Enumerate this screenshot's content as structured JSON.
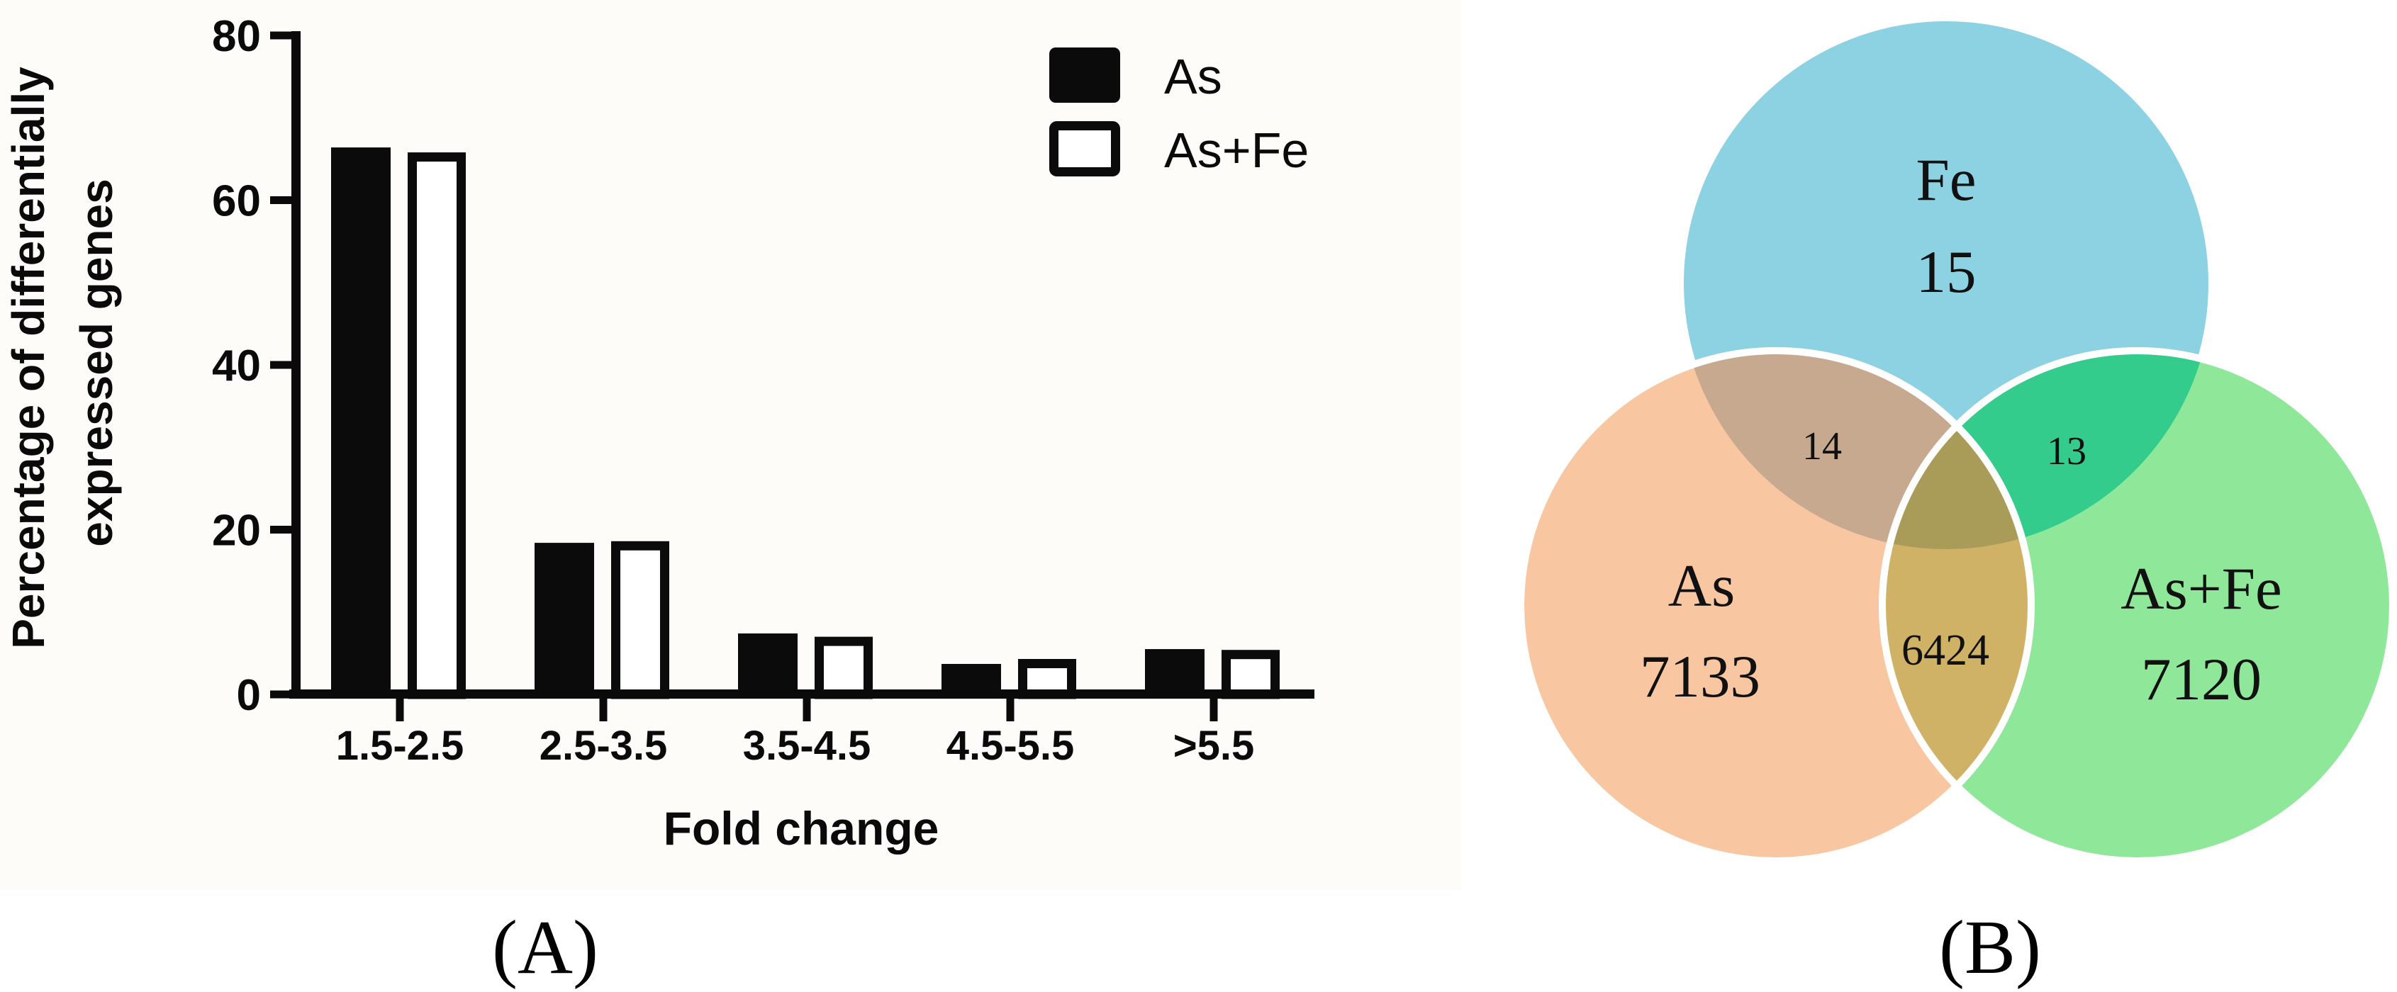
{
  "figure": {
    "panel_a_caption": "(A)",
    "panel_b_caption": "(B)"
  },
  "chart_data": {
    "type": "bar",
    "title": "",
    "ylabel_line1": "Percentage of differentially",
    "ylabel_line2": "expressed genes",
    "xlabel": "Fold change",
    "categories": [
      "1.5-2.5",
      "2.5-3.5",
      "3.5-4.5",
      "4.5-5.5",
      ">5.5"
    ],
    "series": [
      {
        "name": "As",
        "style": "filled",
        "fill": "#0b0b0b",
        "values": [
          66.4,
          18.4,
          7.4,
          3.7,
          5.5
        ]
      },
      {
        "name": "As+Fe",
        "style": "outlined",
        "fill": "#ffffff",
        "values": [
          65.8,
          18.6,
          7.0,
          4.3,
          5.4
        ]
      }
    ],
    "ylim": [
      0,
      80
    ],
    "y_ticks": [
      0,
      20,
      40,
      60,
      80
    ],
    "grid": false,
    "legend_position": "top-right",
    "bar_outline_color": "#0b0b0b"
  },
  "venn": {
    "sets": [
      {
        "label": "Fe",
        "count": "15",
        "color": "#8dd2e2"
      },
      {
        "label": "As",
        "count": "7133",
        "color": "#f8c7a2"
      },
      {
        "label": "As+Fe",
        "count": "7120",
        "color": "#8fe79a"
      }
    ],
    "overlaps": [
      {
        "sets": "As∩Fe",
        "count": "14",
        "color": "#c6a98e"
      },
      {
        "sets": "Fe∩As+Fe",
        "count": "13",
        "color": "#33cc8c"
      },
      {
        "sets": "As∩As+Fe",
        "count": "6424",
        "color": "#cfb266"
      },
      {
        "sets": "As∩Fe∩As+Fe",
        "count": "",
        "color": "#a89c58"
      }
    ],
    "outline_color": "#ffffff"
  }
}
